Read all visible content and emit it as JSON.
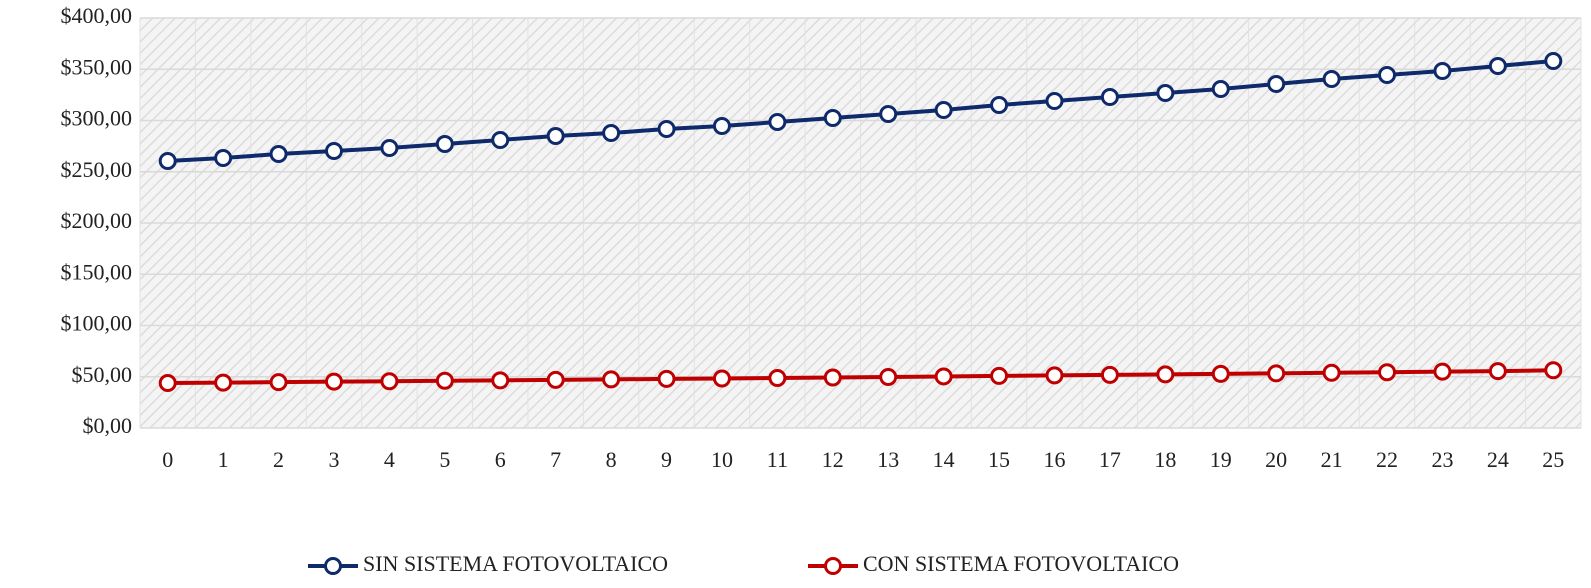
{
  "chart_data": {
    "type": "line",
    "categories": [
      "0",
      "1",
      "2",
      "3",
      "4",
      "5",
      "6",
      "7",
      "8",
      "9",
      "10",
      "11",
      "12",
      "13",
      "14",
      "15",
      "16",
      "17",
      "18",
      "19",
      "20",
      "21",
      "22",
      "23",
      "24",
      "25"
    ],
    "series": [
      {
        "name": "SIN SISTEMA FOTOVOLTAICO",
        "color": "#0f2a6b",
        "values": [
          260.5,
          263.4,
          267.3,
          270.2,
          273.2,
          277.1,
          281,
          284.9,
          287.8,
          291.7,
          294.6,
          298.5,
          302.4,
          306.3,
          310.2,
          315.1,
          319,
          322.9,
          326.8,
          330.7,
          335.6,
          340.5,
          344.4,
          348.3,
          353.2,
          358
        ]
      },
      {
        "name": "CON SISTEMA FOTOVOLTAICO",
        "color": "#c00000",
        "values": [
          43.9,
          44.3,
          44.7,
          45.2,
          45.6,
          46.1,
          46.5,
          47,
          47.4,
          47.9,
          48.3,
          48.8,
          49.3,
          49.8,
          50.3,
          50.8,
          51.3,
          51.8,
          52.3,
          52.8,
          53.3,
          53.9,
          54.4,
          55,
          55.5,
          56.3
        ]
      }
    ],
    "ylim": [
      0,
      400
    ],
    "yticks": [
      {
        "value": 0,
        "label": "$0,00"
      },
      {
        "value": 50,
        "label": "$50,00"
      },
      {
        "value": 100,
        "label": "$100,00"
      },
      {
        "value": 150,
        "label": "$150,00"
      },
      {
        "value": 200,
        "label": "$200,00"
      },
      {
        "value": 250,
        "label": "$250,00"
      },
      {
        "value": 300,
        "label": "$300,00"
      },
      {
        "value": 350,
        "label": "$350,00"
      },
      {
        "value": 400,
        "label": "$400,00"
      }
    ],
    "grid": true,
    "legend": "bottom"
  }
}
